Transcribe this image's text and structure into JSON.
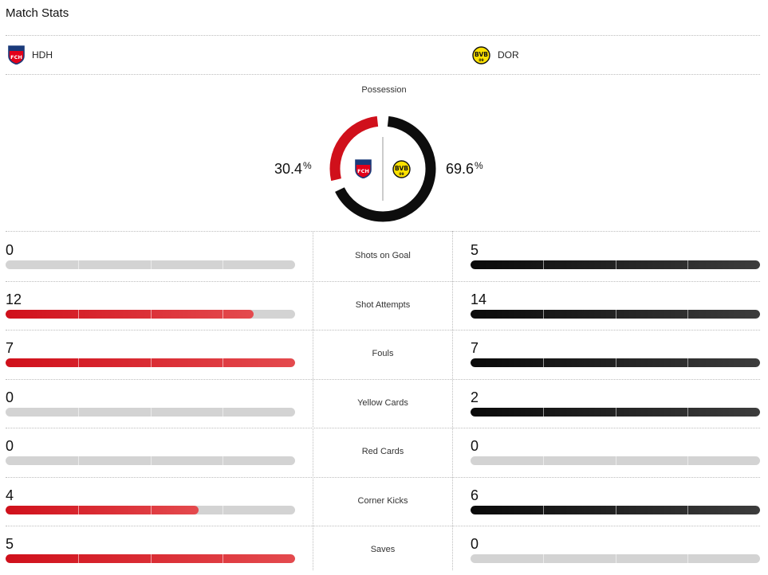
{
  "header": {
    "title": "Match Stats"
  },
  "teams": {
    "home": {
      "abbr": "HDH",
      "logo": "fch-crest-icon",
      "color": "#d0101b",
      "crest_text": "FCH"
    },
    "away": {
      "abbr": "DOR",
      "logo": "bvb-crest-icon",
      "color": "#111111",
      "crest_text": "BVB",
      "crest_sub": "09"
    }
  },
  "possession": {
    "label": "Possession",
    "home_value": "30.4",
    "away_value": "69.6",
    "unit": "%",
    "home_fraction": 0.304
  },
  "stats": [
    {
      "label": "Shots on Goal",
      "home": "0",
      "away": "5",
      "home_fraction": 0,
      "away_fraction": 1
    },
    {
      "label": "Shot Attempts",
      "home": "12",
      "away": "14",
      "home_fraction": 0.857,
      "away_fraction": 1
    },
    {
      "label": "Fouls",
      "home": "7",
      "away": "7",
      "home_fraction": 1,
      "away_fraction": 1
    },
    {
      "label": "Yellow Cards",
      "home": "0",
      "away": "2",
      "home_fraction": 0,
      "away_fraction": 1
    },
    {
      "label": "Red Cards",
      "home": "0",
      "away": "0",
      "home_fraction": 0,
      "away_fraction": 0
    },
    {
      "label": "Corner Kicks",
      "home": "4",
      "away": "6",
      "home_fraction": 0.667,
      "away_fraction": 1
    },
    {
      "label": "Saves",
      "home": "5",
      "away": "0",
      "home_fraction": 1,
      "away_fraction": 0
    }
  ]
}
